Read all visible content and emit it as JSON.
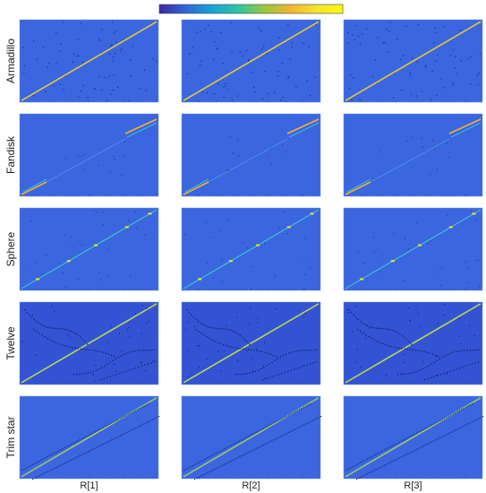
{
  "chart_data": {
    "type": "heatmap",
    "colorbar": {
      "orientation": "horizontal",
      "position": "top-center",
      "colors": [
        "#3e26a8",
        "#2f66d6",
        "#16a3d8",
        "#2fc4a6",
        "#97c73e",
        "#f3b432",
        "#f5e42a",
        "#f9fb0e"
      ]
    },
    "background_color": "#3b66e0",
    "rows": [
      {
        "label": "Armadillo",
        "pattern": "armadillo"
      },
      {
        "label": "Fandisk",
        "pattern": "fandisk"
      },
      {
        "label": "Sphere",
        "pattern": "sphere"
      },
      {
        "label": "Twelve",
        "pattern": "twelve"
      },
      {
        "label": "Trim star",
        "pattern": "trimstar"
      }
    ],
    "columns": [
      "R[1]",
      "R[2]",
      "R[3]"
    ],
    "grid": false,
    "legend": "none"
  }
}
